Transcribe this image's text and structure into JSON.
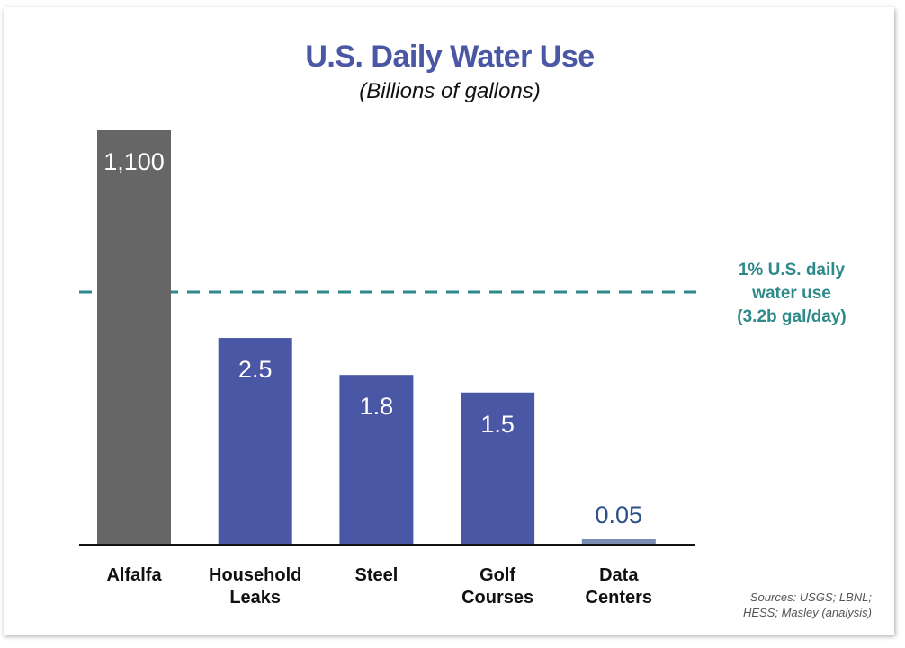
{
  "chart_data": {
    "type": "bar",
    "title": "U.S. Daily Water Use",
    "subtitle": "(Billions of gallons)",
    "categories": [
      "Alfalfa",
      "Household Leaks",
      "Steel",
      "Golf Courses",
      "Data Centers"
    ],
    "category_lines": [
      [
        "Alfalfa"
      ],
      [
        "Household",
        "Leaks"
      ],
      [
        "Steel"
      ],
      [
        "Golf",
        "Courses"
      ],
      [
        "Data",
        "Centers"
      ]
    ],
    "values": [
      1100,
      2.5,
      1.8,
      1.5,
      0.05
    ],
    "value_labels": [
      "1,100",
      "2.5",
      "1.8",
      "1.5",
      "0.05"
    ],
    "colors": [
      "#666666",
      "#4a57a5",
      "#4a57a5",
      "#4a57a5",
      "#7b8db3"
    ],
    "axis_truncated": true,
    "reference_line": {
      "value": 3.2,
      "label_lines": [
        "1% U.S. daily",
        "water use",
        "(3.2b gal/day)"
      ],
      "color": "#2e8a8a",
      "style": "dashed"
    },
    "source_lines": [
      "Sources: USGS; LBNL;",
      "HESS; Masley (analysis)"
    ]
  }
}
